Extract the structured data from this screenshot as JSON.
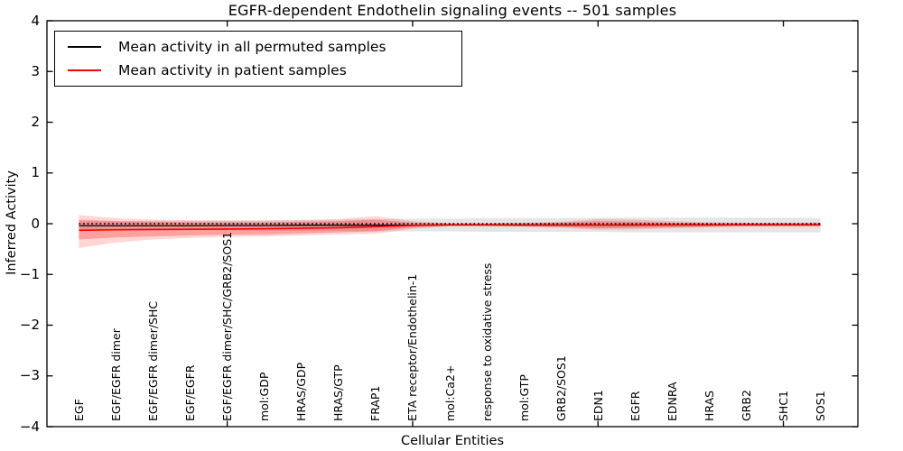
{
  "title": "EGFR-dependent Endothelin signaling events -- 501 samples",
  "axes": {
    "xlabel": "Cellular Entities",
    "ylabel": "Inferred Activity",
    "ytick_labels": [
      "4",
      "3",
      "2",
      "1",
      "0",
      "−1",
      "−2",
      "−3",
      "−4"
    ],
    "ytick_values": [
      4,
      3,
      2,
      1,
      0,
      -1,
      -2,
      -3,
      -4
    ],
    "xtick_indices": [
      4,
      9,
      14,
      19
    ],
    "grid": false
  },
  "legend": {
    "position": "upper-left",
    "entries": [
      {
        "label": "Mean activity in all permuted samples",
        "color": "#000000"
      },
      {
        "label": "Mean activity in patient samples",
        "color": "#ff0000"
      }
    ]
  },
  "chart_data": {
    "type": "line",
    "title": "EGFR-dependent Endothelin signaling events -- 501 samples",
    "xlabel": "Cellular Entities",
    "ylabel": "Inferred Activity",
    "ylim": [
      -4,
      4
    ],
    "legend_position": "upper-left",
    "categories": [
      "EGF",
      "EGF/EGFR dimer",
      "EGF/EGFR dimer/SHC",
      "EGF/EGFR",
      "EGF/EGFR dimer/SHC/GRB2/SOS1",
      "mol:GDP",
      "HRAS/GDP",
      "HRAS/GTP",
      "FRAP1",
      "ETA receptor/Endothelin-1",
      "mol:Ca2+",
      "response to oxidative stress",
      "mol:GTP",
      "GRB2/SOS1",
      "EDN1",
      "EGFR",
      "EDNRA",
      "HRAS",
      "GRB2",
      "SHC1",
      "SOS1"
    ],
    "series": [
      {
        "name": "Mean activity in all permuted samples",
        "color": "#000000",
        "style": "solid",
        "width": 1.3,
        "values": [
          -0.04,
          -0.04,
          -0.04,
          -0.04,
          -0.035,
          -0.035,
          -0.03,
          -0.03,
          -0.03,
          -0.03,
          -0.025,
          -0.025,
          -0.025,
          -0.025,
          -0.025,
          -0.025,
          -0.025,
          -0.02,
          -0.02,
          -0.02,
          -0.02
        ]
      },
      {
        "name": "Mean activity in patient samples",
        "color": "#ff0000",
        "style": "solid",
        "width": 1.6,
        "values": [
          -0.13,
          -0.12,
          -0.115,
          -0.11,
          -0.105,
          -0.1,
          -0.09,
          -0.08,
          -0.06,
          -0.035,
          -0.025,
          -0.025,
          -0.03,
          -0.03,
          -0.03,
          -0.03,
          -0.025,
          -0.025,
          -0.02,
          -0.02,
          -0.02
        ]
      },
      {
        "name": "zero reference",
        "color": "#000000",
        "style": "dotted",
        "width": 1.5,
        "values": [
          0,
          0,
          0,
          0,
          0,
          0,
          0,
          0,
          0,
          0,
          0,
          0,
          0,
          0,
          0,
          0,
          0,
          0,
          0,
          0,
          0
        ]
      }
    ],
    "bands": [
      {
        "name": "permuted samples range",
        "color": "rgba(0,0,0,0.10)",
        "upper": [
          0.05,
          0.05,
          0.06,
          0.06,
          0.07,
          0.07,
          0.08,
          0.08,
          0.09,
          0.1,
          0.1,
          0.11,
          0.11,
          0.11,
          0.12,
          0.12,
          0.12,
          0.12,
          0.12,
          0.12,
          0.11
        ],
        "lower": [
          -0.12,
          -0.12,
          -0.13,
          -0.13,
          -0.13,
          -0.14,
          -0.14,
          -0.14,
          -0.15,
          -0.15,
          -0.15,
          -0.16,
          -0.16,
          -0.16,
          -0.16,
          -0.17,
          -0.17,
          -0.17,
          -0.17,
          -0.17,
          -0.17
        ]
      },
      {
        "name": "patient samples range outer",
        "color": "rgba(255,0,0,0.16)",
        "upper": [
          0.17,
          0.11,
          0.08,
          0.07,
          0.06,
          0.06,
          0.07,
          0.09,
          0.15,
          0.05,
          0.01,
          0.01,
          0.02,
          0.04,
          0.09,
          0.08,
          0.05,
          0.03,
          0.02,
          0.02,
          0.03
        ],
        "lower": [
          -0.48,
          -0.37,
          -0.31,
          -0.28,
          -0.26,
          -0.25,
          -0.23,
          -0.21,
          -0.2,
          -0.1,
          -0.05,
          -0.05,
          -0.06,
          -0.08,
          -0.12,
          -0.11,
          -0.09,
          -0.07,
          -0.06,
          -0.06,
          -0.06
        ]
      },
      {
        "name": "patient samples range inner",
        "color": "rgba(255,0,0,0.25)",
        "upper": [
          0.08,
          0.05,
          0.04,
          0.03,
          0.03,
          0.03,
          0.04,
          0.05,
          0.08,
          0.02,
          0,
          0,
          0.01,
          0.02,
          0.05,
          0.04,
          0.02,
          0.01,
          0.01,
          0.01,
          0.01
        ],
        "lower": [
          -0.31,
          -0.27,
          -0.25,
          -0.23,
          -0.22,
          -0.21,
          -0.19,
          -0.17,
          -0.15,
          -0.07,
          -0.04,
          -0.04,
          -0.05,
          -0.06,
          -0.09,
          -0.08,
          -0.07,
          -0.06,
          -0.05,
          -0.05,
          -0.05
        ]
      }
    ]
  }
}
